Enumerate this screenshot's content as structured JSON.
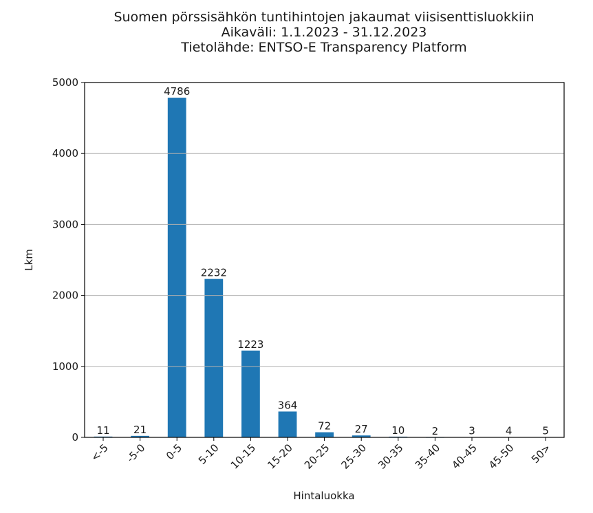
{
  "title": {
    "line1": "Suomen pörssisähkön tuntihintojen jakaumat viisisenttisluokkiin",
    "line2": "Aikaväli: 1.1.2023 - 31.12.2023",
    "line3": "Tietolähde: ENTSO-E Transparency Platform"
  },
  "colors": {
    "bar": "#1f77b4",
    "grid": "#b0b0b0",
    "axis": "#000000",
    "text": "#1a1a1a"
  },
  "chart_data": {
    "type": "bar",
    "title": "Suomen pörssisähkön tuntihintojen jakaumat viisisenttisluokkiin\nAikaväli: 1.1.2023 - 31.12.2023\nTietolähde: ENTSO-E Transparency Platform",
    "xlabel": "Hintaluokka",
    "ylabel": "Lkm",
    "categories": [
      "<-5",
      "-5-0",
      "0-5",
      "5-10",
      "10-15",
      "15-20",
      "20-25",
      "25-30",
      "30-35",
      "35-40",
      "40-45",
      "45-50",
      "50>"
    ],
    "values": [
      11,
      21,
      4786,
      2232,
      1223,
      364,
      72,
      27,
      10,
      2,
      3,
      4,
      5
    ],
    "data_labels": [
      "11",
      "21",
      "4786",
      "2232",
      "1223",
      "364",
      "72",
      "27",
      "10",
      "2",
      "3",
      "4",
      "5"
    ],
    "ylim": [
      0,
      5000
    ],
    "yticks": [
      0,
      1000,
      2000,
      3000,
      4000,
      5000
    ],
    "ytick_labels": [
      "0",
      "1000",
      "2000",
      "3000",
      "4000",
      "5000"
    ],
    "xtick_rotation": 45,
    "grid": "y",
    "legend": null
  }
}
